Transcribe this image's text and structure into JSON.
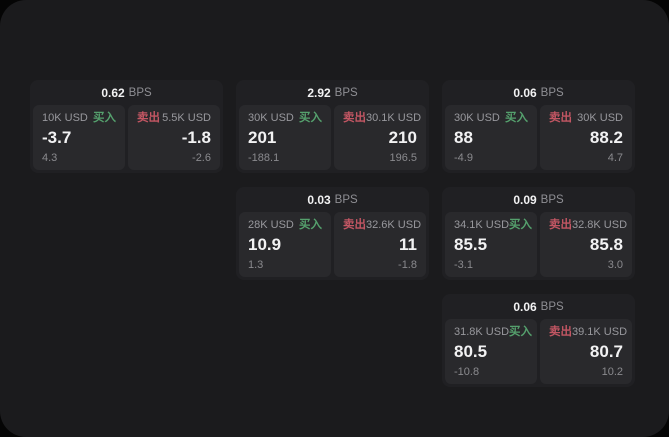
{
  "labels": {
    "bps_unit": "BPS",
    "buy": "买入",
    "sell": "卖出"
  },
  "colors": {
    "page_bg": "#050505",
    "container_bg": "#1b1b1d",
    "card_bg": "#202023",
    "panel_bg": "#29292c",
    "text_primary": "#f2f2f3",
    "text_secondary": "#98989d",
    "buy_green": "#55a06d",
    "sell_red": "#c25663"
  },
  "cards": [
    {
      "bps": "0.62",
      "buy": {
        "amount": "10K USD",
        "price": "-3.7",
        "change": "4.3"
      },
      "sell": {
        "amount": "5.5K USD",
        "price": "-1.8",
        "change": "-2.6"
      }
    },
    {
      "bps": "2.92",
      "buy": {
        "amount": "30K USD",
        "price": "201",
        "change": "-188.1"
      },
      "sell": {
        "amount": "30.1K USD",
        "price": "210",
        "change": "196.5"
      }
    },
    {
      "bps": "0.06",
      "buy": {
        "amount": "30K USD",
        "price": "88",
        "change": "-4.9"
      },
      "sell": {
        "amount": "30K USD",
        "price": "88.2",
        "change": "4.7"
      }
    },
    {
      "bps": "0.03",
      "buy": {
        "amount": "28K USD",
        "price": "10.9",
        "change": "1.3"
      },
      "sell": {
        "amount": "32.6K USD",
        "price": "11",
        "change": "-1.8"
      }
    },
    {
      "bps": "0.09",
      "buy": {
        "amount": "34.1K USD",
        "price": "85.5",
        "change": "-3.1"
      },
      "sell": {
        "amount": "32.8K USD",
        "price": "85.8",
        "change": "3.0"
      }
    },
    {
      "bps": "0.06",
      "buy": {
        "amount": "31.8K USD",
        "price": "80.5",
        "change": "-10.8"
      },
      "sell": {
        "amount": "39.1K USD",
        "price": "80.7",
        "change": "10.2"
      }
    }
  ]
}
